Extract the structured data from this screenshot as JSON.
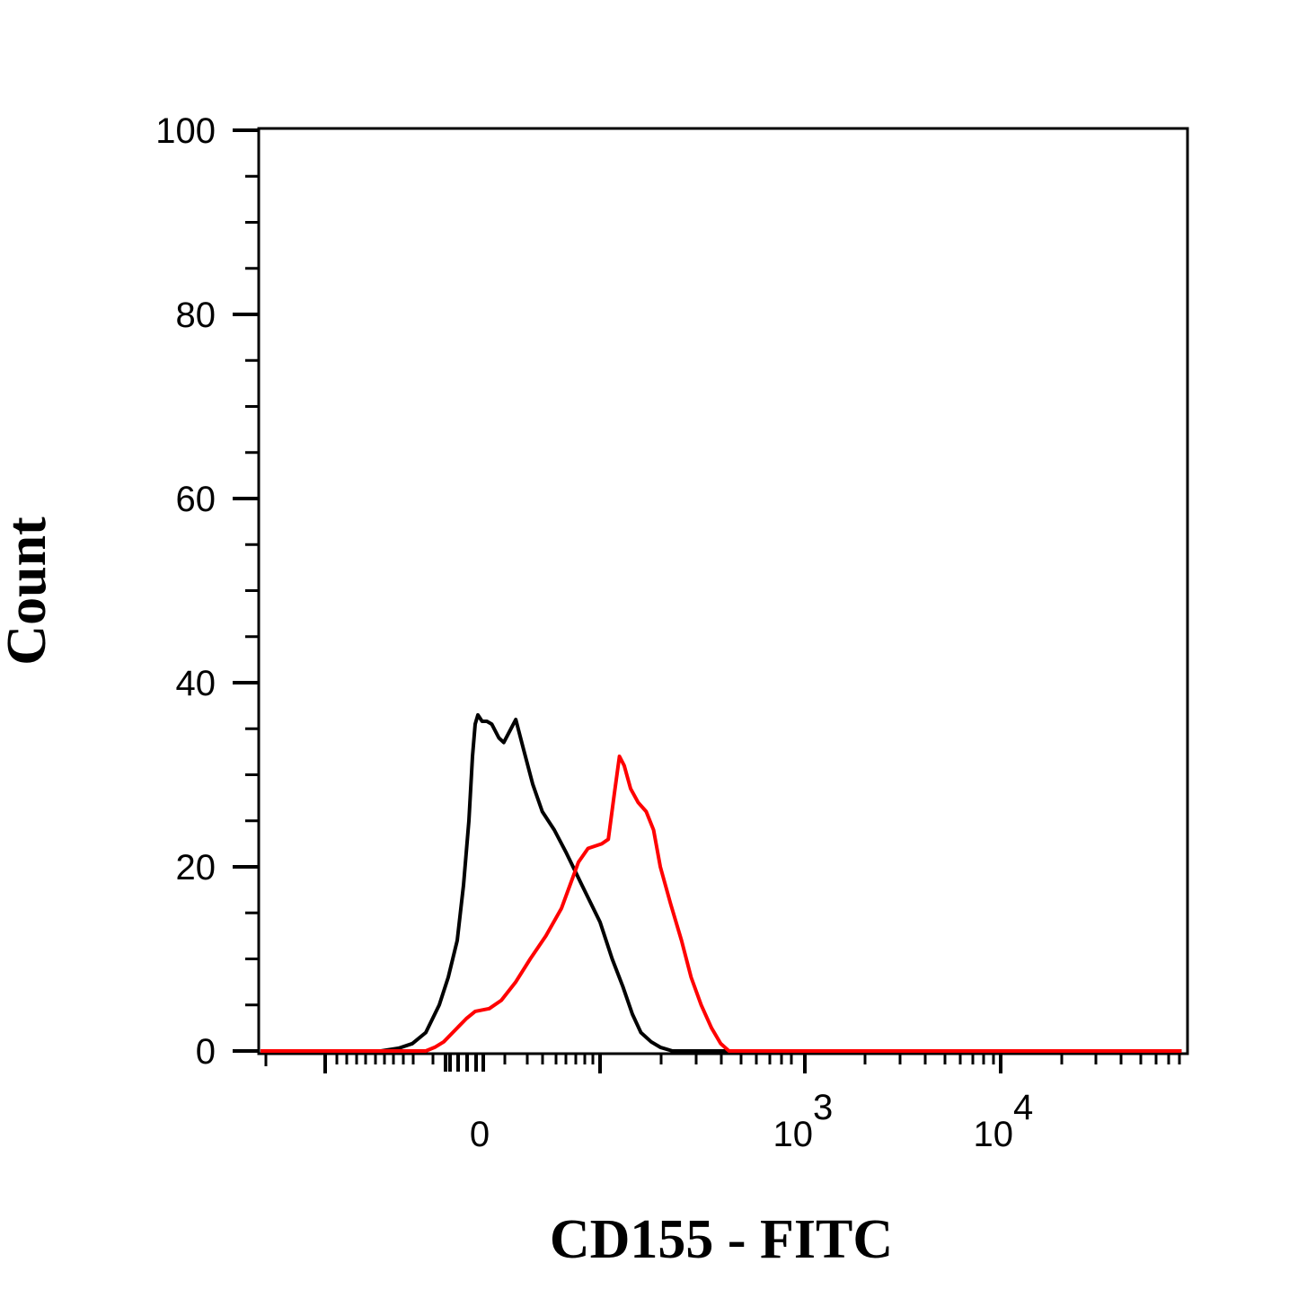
{
  "chart_data": {
    "type": "line",
    "title": "",
    "xlabel": "CD155 - FITC",
    "ylabel": "Count",
    "x_scale": "biexponential",
    "ylim": [
      0,
      100
    ],
    "grid": false,
    "legend": "none",
    "y_ticks": [
      {
        "value": 0,
        "label": "0"
      },
      {
        "value": 20,
        "label": "20"
      },
      {
        "value": 40,
        "label": "40"
      },
      {
        "value": 60,
        "label": "60"
      },
      {
        "value": 80,
        "label": "80"
      },
      {
        "value": 100,
        "label": "100"
      }
    ],
    "x_ticks": [
      {
        "value": 0,
        "base": "0",
        "exp": ""
      },
      {
        "value": 1000,
        "base": "10",
        "exp": "3"
      },
      {
        "value": 10000,
        "base": "10",
        "exp": "4"
      }
    ],
    "series": [
      {
        "color": "#000000",
        "points": [
          [
            -500,
            0
          ],
          [
            -110,
            0
          ],
          [
            -90,
            0.3
          ],
          [
            -75,
            0.8
          ],
          [
            -60,
            2
          ],
          [
            -45,
            5
          ],
          [
            -35,
            8
          ],
          [
            -25,
            12
          ],
          [
            -18,
            18
          ],
          [
            -12,
            25
          ],
          [
            -8,
            32
          ],
          [
            -5,
            35.5
          ],
          [
            -2,
            36.5
          ],
          [
            2,
            35.8
          ],
          [
            6,
            35.8
          ],
          [
            10,
            35.5
          ],
          [
            16,
            34
          ],
          [
            20,
            33.5
          ],
          [
            26,
            35
          ],
          [
            30,
            36
          ],
          [
            36,
            33
          ],
          [
            44,
            29
          ],
          [
            52,
            26
          ],
          [
            62,
            24
          ],
          [
            72,
            21.5
          ],
          [
            85,
            18
          ],
          [
            100,
            14
          ],
          [
            115,
            10
          ],
          [
            130,
            7
          ],
          [
            145,
            4
          ],
          [
            160,
            2
          ],
          [
            180,
            1
          ],
          [
            200,
            0.4
          ],
          [
            230,
            0
          ],
          [
            80000,
            0
          ]
        ]
      },
      {
        "color": "#ff0000",
        "points": [
          [
            -500,
            0
          ],
          [
            -60,
            0
          ],
          [
            -50,
            0.4
          ],
          [
            -40,
            1
          ],
          [
            -30,
            2
          ],
          [
            -15,
            3.5
          ],
          [
            -5,
            4.3
          ],
          [
            8,
            4.6
          ],
          [
            18,
            5.5
          ],
          [
            30,
            7.5
          ],
          [
            42,
            10
          ],
          [
            55,
            12.5
          ],
          [
            68,
            15.5
          ],
          [
            75,
            18
          ],
          [
            82,
            20.5
          ],
          [
            90,
            22
          ],
          [
            102,
            22.5
          ],
          [
            110,
            23
          ],
          [
            118,
            28
          ],
          [
            125,
            32
          ],
          [
            132,
            31
          ],
          [
            142,
            28.5
          ],
          [
            155,
            27
          ],
          [
            170,
            26
          ],
          [
            185,
            24
          ],
          [
            200,
            20
          ],
          [
            225,
            16
          ],
          [
            255,
            12
          ],
          [
            285,
            8
          ],
          [
            320,
            5
          ],
          [
            360,
            2.5
          ],
          [
            400,
            0.8
          ],
          [
            440,
            0
          ],
          [
            80000,
            0
          ]
        ]
      }
    ]
  }
}
